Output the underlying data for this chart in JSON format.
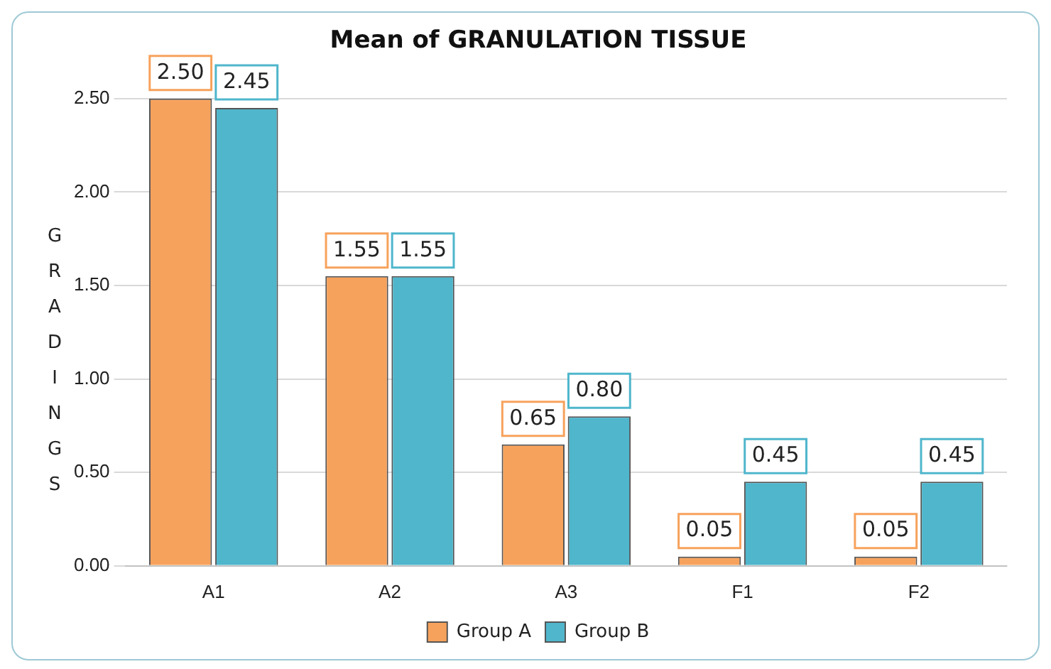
{
  "chart_data": {
    "type": "bar",
    "title": "Mean of GRANULATION TISSUE",
    "ylabel": "GRADINGS",
    "categories": [
      "A1",
      "A2",
      "A3",
      "F1",
      "F2"
    ],
    "series": [
      {
        "name": "Group A",
        "color": "#f7a25c",
        "values": [
          2.5,
          1.55,
          0.65,
          0.05,
          0.05
        ],
        "value_labels": [
          "2.50",
          "1.55",
          "0.65",
          "0.05",
          "0.05"
        ]
      },
      {
        "name": "Group B",
        "color": "#4fb6cc",
        "values": [
          2.45,
          1.55,
          0.8,
          0.45,
          0.45
        ],
        "value_labels": [
          "2.45",
          "1.55",
          "0.80",
          "0.45",
          "0.45"
        ]
      }
    ],
    "ylim": [
      0,
      2.5
    ],
    "yticks": [
      {
        "value": 0,
        "label": "0.00"
      },
      {
        "value": 0.5,
        "label": "0.50"
      },
      {
        "value": 1,
        "label": "1.00"
      },
      {
        "value": 1.5,
        "label": "1.50"
      },
      {
        "value": 2,
        "label": "2.00"
      },
      {
        "value": 2.5,
        "label": "2.50"
      }
    ],
    "grid": "y",
    "legend": "bottom"
  }
}
